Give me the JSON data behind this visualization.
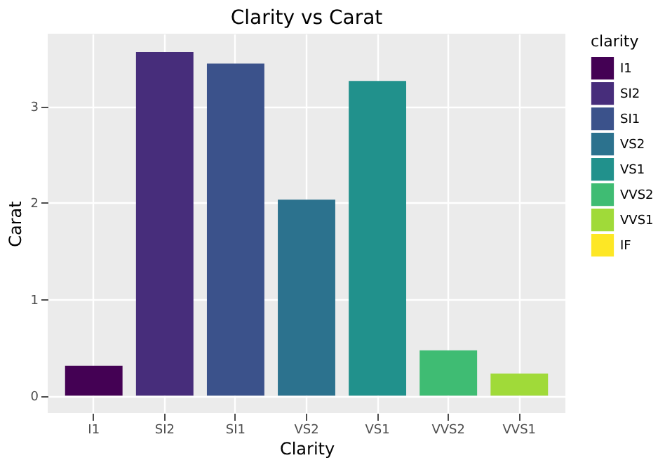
{
  "chart_data": {
    "type": "bar",
    "title": "Clarity vs Carat",
    "xlabel": "Clarity",
    "ylabel": "Carat",
    "legend_title": "clarity",
    "categories": [
      "I1",
      "SI2",
      "SI1",
      "VS2",
      "VS1",
      "VVS2",
      "VVS1"
    ],
    "series": [
      {
        "name": "I1",
        "color": "#440154",
        "values": [
          0.31,
          null,
          null,
          null,
          null,
          null,
          null
        ]
      },
      {
        "name": "SI2",
        "color": "#472d7b",
        "values": [
          null,
          3.56,
          null,
          null,
          null,
          null,
          null
        ]
      },
      {
        "name": "SI1",
        "color": "#3b528b",
        "values": [
          null,
          null,
          3.44,
          null,
          null,
          null,
          null
        ]
      },
      {
        "name": "VS2",
        "color": "#2c728e",
        "values": [
          null,
          null,
          null,
          2.03,
          null,
          null,
          null
        ]
      },
      {
        "name": "VS1",
        "color": "#21918c",
        "values": [
          null,
          null,
          null,
          null,
          3.26,
          null,
          null
        ]
      },
      {
        "name": "VVS2",
        "color": "#3fbc73",
        "values": [
          null,
          null,
          null,
          null,
          null,
          0.47,
          null
        ]
      },
      {
        "name": "VVS1",
        "color": "#a0da39",
        "values": [
          null,
          null,
          null,
          null,
          null,
          null,
          0.23
        ]
      },
      {
        "name": "IF",
        "color": "#fde725",
        "values": [
          null,
          null,
          null,
          null,
          null,
          null,
          null
        ]
      }
    ],
    "ylim": [
      -0.18,
      3.75
    ],
    "yticks": [
      0,
      1,
      2,
      3
    ],
    "grid": true,
    "legend": "right"
  }
}
